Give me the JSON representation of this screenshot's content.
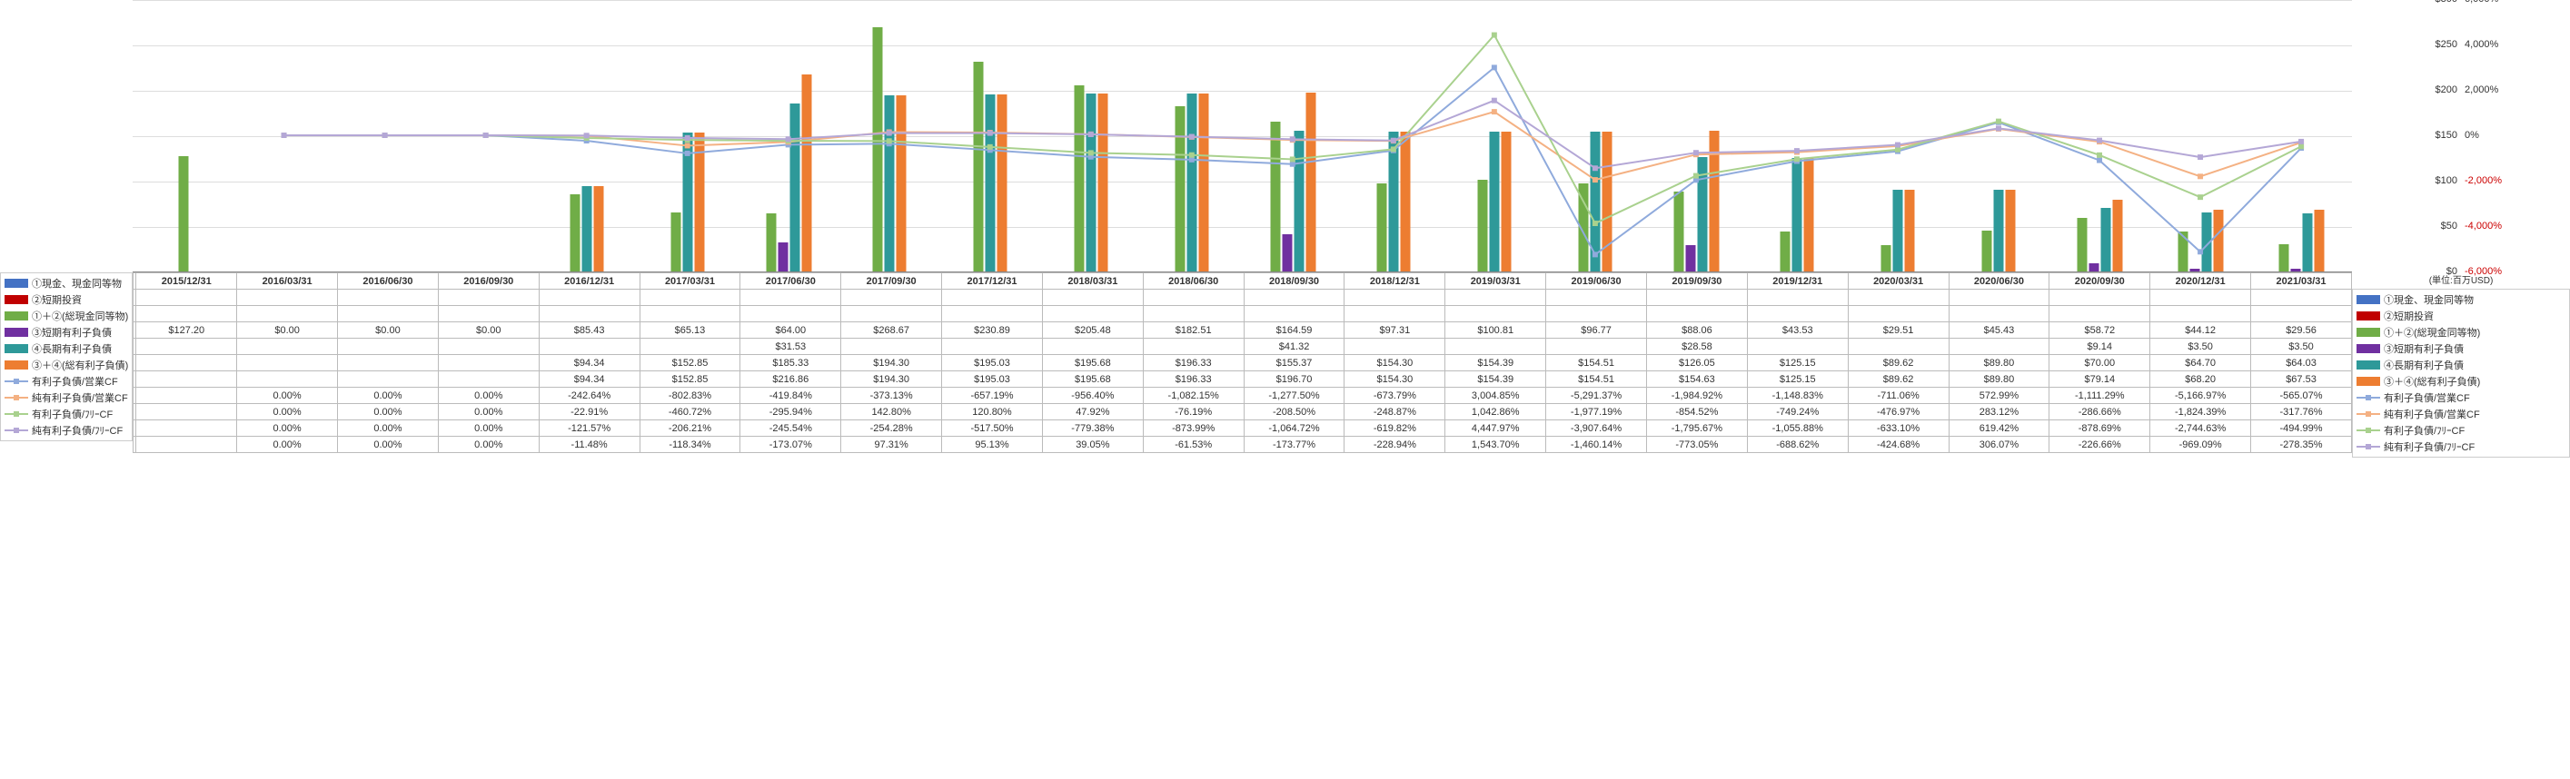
{
  "colors": {
    "s1": "#4472c4",
    "s2": "#c00000",
    "s3": "#70ad47",
    "s4": "#7030a0",
    "s5": "#2e9999",
    "s6": "#ed7d31",
    "l1": "#8faadc",
    "l2": "#f4b183",
    "l3": "#a9d18e",
    "l4": "#b4a7d6",
    "grid": "#dddddd"
  },
  "legend": [
    {
      "c": "s1",
      "t": "bar",
      "label": "①現金、現金同等物"
    },
    {
      "c": "s2",
      "t": "bar",
      "label": "②短期投資"
    },
    {
      "c": "s3",
      "t": "bar",
      "label": "①＋②(総現金同等物)"
    },
    {
      "c": "s4",
      "t": "bar",
      "label": "③短期有利子負債"
    },
    {
      "c": "s5",
      "t": "bar",
      "label": "④長期有利子負債"
    },
    {
      "c": "s6",
      "t": "bar",
      "label": "③＋④(総有利子負債)"
    },
    {
      "c": "l1",
      "t": "line",
      "label": "有利子負債/営業CF"
    },
    {
      "c": "l2",
      "t": "line",
      "label": "純有利子負債/営業CF"
    },
    {
      "c": "l3",
      "t": "line",
      "label": "有利子負債/ﾌﾘｰCF"
    },
    {
      "c": "l4",
      "t": "line",
      "label": "純有利子負債/ﾌﾘｰCF"
    }
  ],
  "unit": "(単位:百万USD)",
  "leftAxis": {
    "min": 0,
    "max": 300,
    "step": 50,
    "prefix": "$"
  },
  "rightAxis": {
    "min": -6000,
    "max": 6000,
    "step": 2000,
    "suffix": "%",
    "negColor": true
  },
  "periods": [
    "2015/12/31",
    "2016/03/31",
    "2016/06/30",
    "2016/09/30",
    "2016/12/31",
    "2017/03/31",
    "2017/06/30",
    "2017/09/30",
    "2017/12/31",
    "2018/03/31",
    "2018/06/30",
    "2018/09/30",
    "2018/12/31",
    "2019/03/31",
    "2019/06/30",
    "2019/09/30",
    "2019/12/31",
    "2020/03/31",
    "2020/06/30",
    "2020/09/30",
    "2020/12/31",
    "2021/03/31"
  ],
  "bars": {
    "s3": [
      127.2,
      0,
      0,
      0,
      85.43,
      65.13,
      64.0,
      268.67,
      230.89,
      205.48,
      182.51,
      164.59,
      97.31,
      100.81,
      96.77,
      88.06,
      43.53,
      29.51,
      45.43,
      58.72,
      44.12,
      29.56
    ],
    "s4": [
      null,
      null,
      null,
      null,
      null,
      null,
      31.53,
      null,
      null,
      null,
      null,
      41.32,
      null,
      null,
      null,
      28.58,
      null,
      null,
      null,
      9.14,
      3.5,
      3.5
    ],
    "s5": [
      null,
      null,
      null,
      null,
      94.34,
      152.85,
      185.33,
      194.3,
      195.03,
      195.68,
      196.33,
      155.37,
      154.3,
      154.39,
      154.51,
      126.05,
      125.15,
      89.62,
      89.8,
      70.0,
      64.7,
      64.03
    ],
    "s6": [
      null,
      null,
      null,
      null,
      94.34,
      152.85,
      216.86,
      194.3,
      195.03,
      195.68,
      196.33,
      196.7,
      154.3,
      154.39,
      154.51,
      154.63,
      125.15,
      89.62,
      89.8,
      79.14,
      68.2,
      67.53
    ]
  },
  "lines": {
    "l1": [
      null,
      0,
      0,
      0,
      -242.64,
      -802.83,
      -419.84,
      -373.13,
      -657.19,
      -956.4,
      -1082.15,
      -1277.5,
      -673.79,
      3004.85,
      -5291.37,
      -1984.92,
      -1148.83,
      -711.06,
      572.99,
      -1111.29,
      -5166.97,
      -565.07
    ],
    "l2": [
      null,
      0,
      0,
      0,
      -22.91,
      -460.72,
      -295.94,
      142.8,
      120.8,
      47.92,
      -76.19,
      -208.5,
      -248.87,
      1042.86,
      -1977.19,
      -854.52,
      -749.24,
      -476.97,
      283.12,
      -286.66,
      -1824.39,
      -317.76
    ],
    "l3": [
      null,
      0,
      0,
      0,
      -121.57,
      -206.21,
      -245.54,
      -254.28,
      -517.5,
      -779.38,
      -873.99,
      -1064.72,
      -619.82,
      4447.97,
      -3907.64,
      -1795.67,
      -1055.88,
      -633.1,
      619.42,
      -878.69,
      -2744.63,
      -494.99
    ],
    "l4": [
      null,
      0,
      0,
      0,
      -11.48,
      -118.34,
      -173.07,
      97.31,
      95.13,
      39.05,
      -61.53,
      -173.77,
      -228.94,
      1543.7,
      -1460.14,
      -773.05,
      -688.62,
      -424.68,
      306.07,
      -226.66,
      -969.09,
      -278.35
    ]
  },
  "rows": [
    {
      "k": "s1",
      "label": "①現金、現金同等物",
      "vals": []
    },
    {
      "k": "s2",
      "label": "②短期投資",
      "vals": []
    },
    {
      "k": "s3",
      "label": "①＋②(総現金同等物)",
      "fmt": "$",
      "vals": [
        127.2,
        0.0,
        0.0,
        0.0,
        85.43,
        65.13,
        64.0,
        268.67,
        230.89,
        205.48,
        182.51,
        164.59,
        97.31,
        100.81,
        96.77,
        88.06,
        43.53,
        29.51,
        45.43,
        58.72,
        44.12,
        29.56
      ]
    },
    {
      "k": "s4",
      "label": "③短期有利子負債",
      "fmt": "$",
      "vals": [
        null,
        null,
        null,
        null,
        null,
        null,
        31.53,
        null,
        null,
        null,
        null,
        41.32,
        null,
        null,
        null,
        28.58,
        null,
        null,
        null,
        9.14,
        3.5,
        3.5
      ]
    },
    {
      "k": "s5",
      "label": "④長期有利子負債",
      "fmt": "$",
      "vals": [
        null,
        null,
        null,
        null,
        94.34,
        152.85,
        185.33,
        194.3,
        195.03,
        195.68,
        196.33,
        155.37,
        154.3,
        154.39,
        154.51,
        126.05,
        125.15,
        89.62,
        89.8,
        70.0,
        64.7,
        64.03
      ]
    },
    {
      "k": "s6",
      "label": "③＋④(総有利子負債)",
      "fmt": "$",
      "vals": [
        null,
        null,
        null,
        null,
        94.34,
        152.85,
        216.86,
        194.3,
        195.03,
        195.68,
        196.33,
        196.7,
        154.3,
        154.39,
        154.51,
        154.63,
        125.15,
        89.62,
        89.8,
        79.14,
        68.2,
        67.53
      ]
    },
    {
      "k": "l1",
      "label": "有利子負債/営業CF",
      "fmt": "%",
      "vals": [
        null,
        0.0,
        0.0,
        0.0,
        -242.64,
        -802.83,
        -419.84,
        -373.13,
        -657.19,
        -956.4,
        -1082.15,
        -1277.5,
        -673.79,
        3004.85,
        -5291.37,
        -1984.92,
        -1148.83,
        -711.06,
        572.99,
        -1111.29,
        -5166.97,
        -565.07
      ]
    },
    {
      "k": "l2",
      "label": "純有利子負債/営業CF",
      "fmt": "%",
      "vals": [
        null,
        0.0,
        0.0,
        0.0,
        -22.91,
        -460.72,
        -295.94,
        142.8,
        120.8,
        47.92,
        -76.19,
        -208.5,
        -248.87,
        1042.86,
        -1977.19,
        -854.52,
        -749.24,
        -476.97,
        283.12,
        -286.66,
        -1824.39,
        -317.76
      ]
    },
    {
      "k": "l3",
      "label": "有利子負債/ﾌﾘｰCF",
      "fmt": "%",
      "vals": [
        null,
        0.0,
        0.0,
        0.0,
        -121.57,
        -206.21,
        -245.54,
        -254.28,
        -517.5,
        -779.38,
        -873.99,
        -1064.72,
        -619.82,
        4447.97,
        -3907.64,
        -1795.67,
        -1055.88,
        -633.1,
        619.42,
        -878.69,
        -2744.63,
        -494.99
      ]
    },
    {
      "k": "l4",
      "label": "純有利子負債/ﾌﾘｰCF",
      "fmt": "%",
      "vals": [
        null,
        0.0,
        0.0,
        0.0,
        -11.48,
        -118.34,
        -173.07,
        97.31,
        95.13,
        39.05,
        -61.53,
        -173.77,
        -228.94,
        1543.7,
        -1460.14,
        -773.05,
        -688.62,
        -424.68,
        306.07,
        -226.66,
        -969.09,
        -278.35
      ]
    }
  ]
}
